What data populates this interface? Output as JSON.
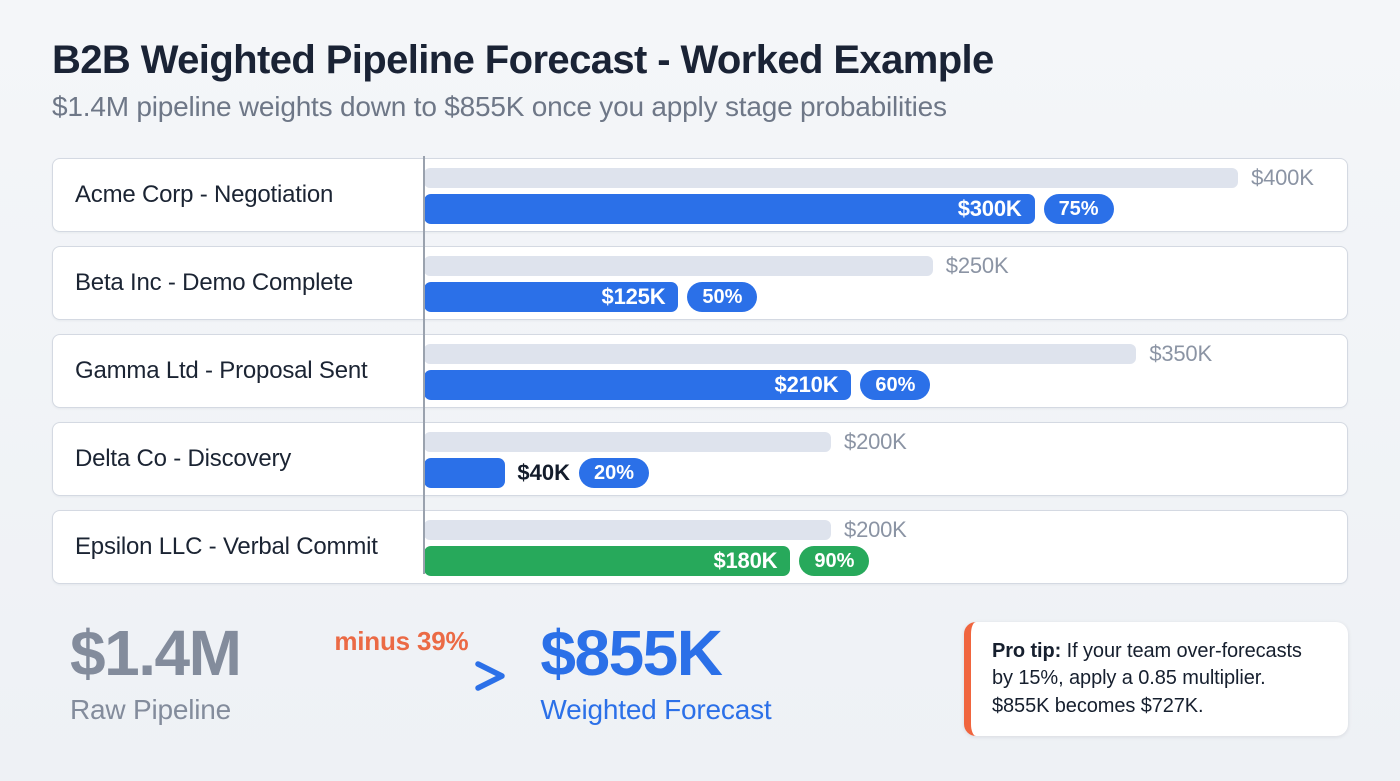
{
  "header": {
    "title": "B2B Weighted Pipeline Forecast - Worked Example",
    "subtitle": "$1.4M pipeline weights down to $855K once you apply stage probabilities"
  },
  "chart_data": {
    "type": "bar",
    "orientation": "horizontal",
    "axis_max_k": 400,
    "legend": [
      "raw pipeline value (gray)",
      "weighted value (colored)"
    ],
    "rows": [
      {
        "label": "Acme Corp - Negotiation",
        "raw_k": 400,
        "raw_label": "$400K",
        "weighted_k": 300,
        "weighted_label": "$300K",
        "probability": "75%",
        "color": "blue"
      },
      {
        "label": "Beta Inc - Demo Complete",
        "raw_k": 250,
        "raw_label": "$250K",
        "weighted_k": 125,
        "weighted_label": "$125K",
        "probability": "50%",
        "color": "blue"
      },
      {
        "label": "Gamma Ltd - Proposal Sent",
        "raw_k": 350,
        "raw_label": "$350K",
        "weighted_k": 210,
        "weighted_label": "$210K",
        "probability": "60%",
        "color": "blue"
      },
      {
        "label": "Delta Co - Discovery",
        "raw_k": 200,
        "raw_label": "$200K",
        "weighted_k": 40,
        "weighted_label": "$40K",
        "probability": "20%",
        "color": "blue"
      },
      {
        "label": "Epsilon LLC - Verbal Commit",
        "raw_k": 200,
        "raw_label": "$200K",
        "weighted_k": 180,
        "weighted_label": "$180K",
        "probability": "90%",
        "color": "green"
      }
    ]
  },
  "summary": {
    "raw_total": "$1.4M",
    "raw_caption": "Raw Pipeline",
    "delta_label": "minus 39%",
    "weighted_total": "$855K",
    "weighted_caption": "Weighted Forecast"
  },
  "pro_tip": {
    "bold": "Pro tip:",
    "text": " If your team over-forecasts by 15%, apply a 0.85 multiplier. $855K becomes $727K."
  },
  "colors": {
    "blue": "#2b70e8",
    "green": "#27a95b",
    "gray_bar": "#dee3ed",
    "orange": "#eb6a45"
  }
}
